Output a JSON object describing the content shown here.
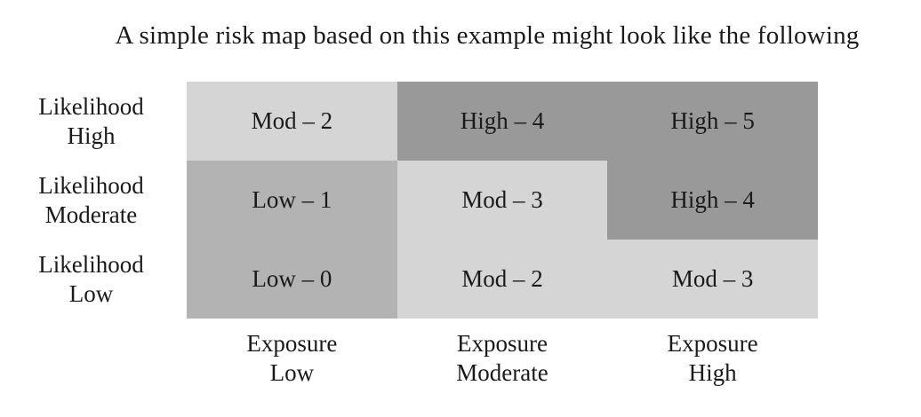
{
  "title": "A simple risk map based on this example might look like the following",
  "chart_data": {
    "type": "heatmap",
    "title": "A simple risk map based on this example might look like the following",
    "rows": [
      {
        "top": "Likelihood",
        "bottom": "High"
      },
      {
        "top": "Likelihood",
        "bottom": "Moderate"
      },
      {
        "top": "Likelihood",
        "bottom": "Low"
      }
    ],
    "columns": [
      {
        "top": "Exposure",
        "bottom": "Low"
      },
      {
        "top": "Exposure",
        "bottom": "Moderate"
      },
      {
        "top": "Exposure",
        "bottom": "High"
      }
    ],
    "cells": [
      [
        {
          "label": "Mod – 2",
          "level": "Mod",
          "score": 2
        },
        {
          "label": "High – 4",
          "level": "High",
          "score": 4
        },
        {
          "label": "High – 5",
          "level": "High",
          "score": 5
        }
      ],
      [
        {
          "label": "Low – 1",
          "level": "Low",
          "score": 1
        },
        {
          "label": "Mod – 3",
          "level": "Mod",
          "score": 3
        },
        {
          "label": "High – 4",
          "level": "High",
          "score": 4
        }
      ],
      [
        {
          "label": "Low – 0",
          "level": "Low",
          "score": 0
        },
        {
          "label": "Mod – 2",
          "level": "Mod",
          "score": 2
        },
        {
          "label": "Mod – 3",
          "level": "Mod",
          "score": 3
        }
      ]
    ],
    "level_colors": {
      "High": "#999999",
      "Mod": "#d5d5d5",
      "Low": "#b3b3b3"
    }
  }
}
